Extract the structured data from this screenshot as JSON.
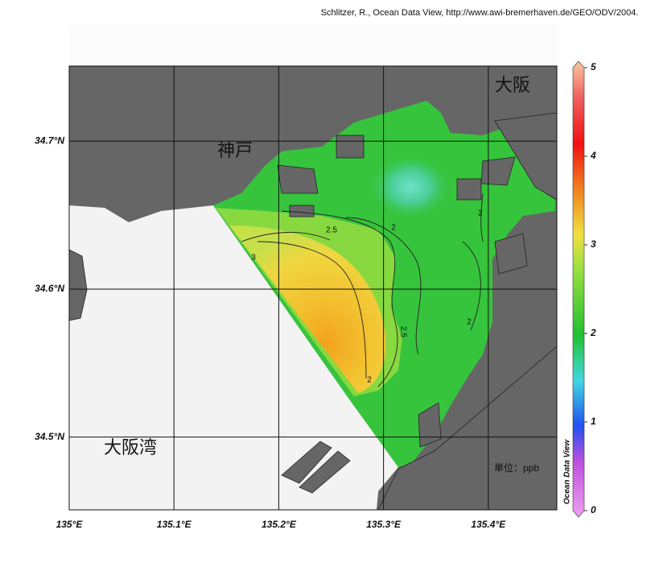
{
  "credit": "Schlitzer, R., Ocean Data View, http://www.awi-bremerhaven.de/GEO/ODV/2004.",
  "map": {
    "lon_range": [
      135.0,
      135.4654
    ],
    "lat_range": [
      34.4508,
      34.7508
    ],
    "lon_ticks": [
      {
        "value": 135.0,
        "label": "135°E"
      },
      {
        "value": 135.1,
        "label": "135.1°E"
      },
      {
        "value": 135.2,
        "label": "135.2°E"
      },
      {
        "value": 135.3,
        "label": "135.3°E"
      },
      {
        "value": 135.4,
        "label": "135.4°E"
      }
    ],
    "lat_ticks": [
      {
        "value": 34.5,
        "label": "34.5°N"
      },
      {
        "value": 34.6,
        "label": "34.6°N"
      },
      {
        "value": 34.7,
        "label": "34.7°N"
      }
    ],
    "places": [
      "大阪",
      "神戸",
      "大阪湾"
    ],
    "unit": "単位：ppb",
    "contour_labels": [
      2.5,
      2,
      3,
      2.5,
      2,
      2,
      2
    ]
  },
  "colorbar": {
    "title": "Ocean Data View",
    "range": [
      0,
      5
    ],
    "ticks": [
      0,
      1,
      2,
      3,
      4,
      5
    ]
  }
}
